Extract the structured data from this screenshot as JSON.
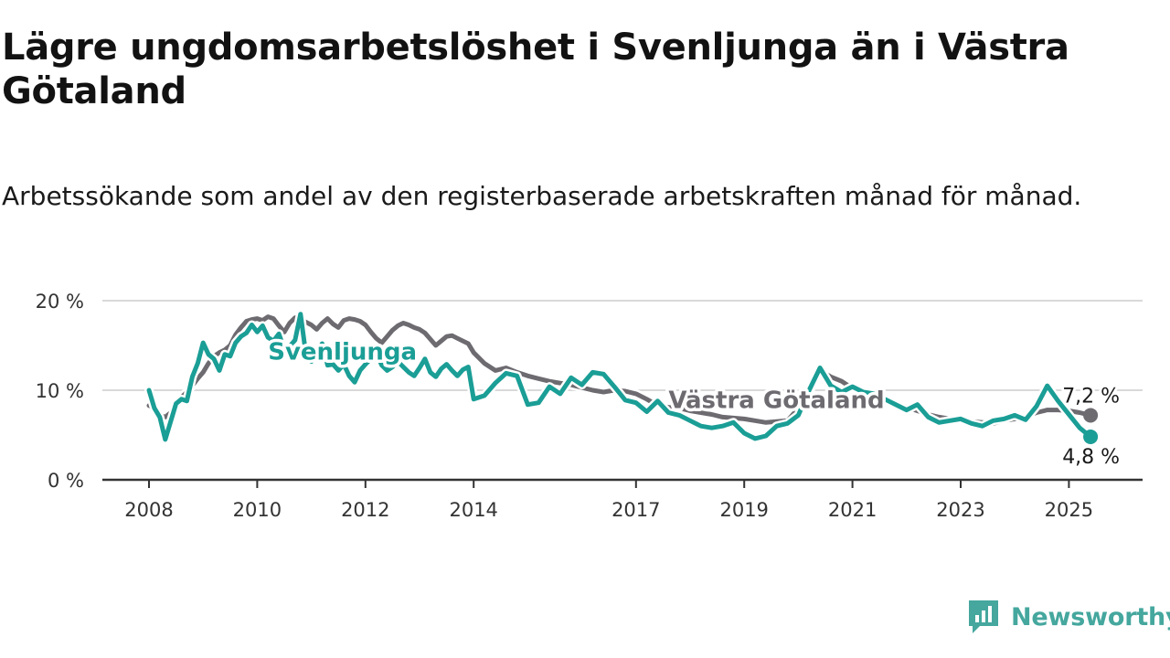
{
  "title": "Lägre ungdomsarbetslöshet i Svenljunga än i Västra Götaland",
  "subtitle": "Arbetssökande som andel av den registerbaserade arbetskraften månad för månad.",
  "brand": "Newsworthy",
  "colors": {
    "svenljunga": "#1a9e96",
    "vastra": "#6d6a70",
    "logo": "#45a79e",
    "grid": "#d9d9d9",
    "axis": "#333333"
  },
  "chart_data": {
    "type": "line",
    "title": "Lägre ungdomsarbetslöshet i Svenljunga än i Västra Götaland",
    "subtitle": "Arbetssökande som andel av den registerbaserade arbetskraften månad för månad.",
    "xlabel": "",
    "ylabel": "",
    "xlim": [
      2008.0,
      2027.0
    ],
    "ylim": [
      0,
      20
    ],
    "yticks": [
      0,
      10,
      20
    ],
    "ytick_labels": [
      "0 %",
      "10 %",
      "20 %"
    ],
    "xticks": [
      2008,
      2010,
      2012,
      2014,
      2017,
      2019,
      2021,
      2023,
      2025
    ],
    "xtick_labels": [
      "2008",
      "2010",
      "2012",
      "2014",
      "2017",
      "2019",
      "2021",
      "2023",
      "2025"
    ],
    "grid": true,
    "legend": "inline labels",
    "series": [
      {
        "name": "Västra Götaland",
        "color": "#6d6a70",
        "label_x": 2017.6,
        "label_y": 8.0,
        "end_label": "7,2 %",
        "x": [
          2008.0,
          2008.1,
          2008.2,
          2008.3,
          2008.4,
          2008.5,
          2008.6,
          2008.7,
          2008.8,
          2008.9,
          2009.0,
          2009.1,
          2009.2,
          2009.3,
          2009.4,
          2009.5,
          2009.6,
          2009.7,
          2009.8,
          2009.9,
          2010.0,
          2010.1,
          2010.2,
          2010.3,
          2010.4,
          2010.5,
          2010.6,
          2010.7,
          2010.8,
          2010.9,
          2011.0,
          2011.1,
          2011.2,
          2011.3,
          2011.4,
          2011.5,
          2011.6,
          2011.7,
          2011.8,
          2011.9,
          2012.0,
          2012.1,
          2012.2,
          2012.3,
          2012.4,
          2012.5,
          2012.6,
          2012.7,
          2012.8,
          2012.9,
          2013.0,
          2013.1,
          2013.2,
          2013.3,
          2013.4,
          2013.5,
          2013.6,
          2013.7,
          2013.8,
          2013.9,
          2014.0,
          2014.2,
          2014.4,
          2014.6,
          2014.8,
          2015.0,
          2015.2,
          2015.4,
          2015.6,
          2015.8,
          2016.0,
          2016.2,
          2016.4,
          2016.6,
          2016.8,
          2017.0,
          2017.2,
          2017.4,
          2017.6,
          2017.8,
          2018.0,
          2018.2,
          2018.4,
          2018.6,
          2018.8,
          2019.0,
          2019.2,
          2019.4,
          2019.6,
          2019.8,
          2020.0,
          2020.2,
          2020.4,
          2020.6,
          2020.8,
          2021.0,
          2021.2,
          2021.4,
          2021.6,
          2021.8,
          2022.0,
          2022.2,
          2022.4,
          2022.6,
          2022.8,
          2023.0,
          2023.2,
          2023.4,
          2023.6,
          2023.8,
          2024.0,
          2024.2,
          2024.4,
          2024.6,
          2024.8,
          2025.0,
          2025.2,
          2025.4
        ],
        "values": [
          8.3,
          8.0,
          7.2,
          7.0,
          7.5,
          8.3,
          9.2,
          9.8,
          10.5,
          11.3,
          12.0,
          13.0,
          13.8,
          14.2,
          14.5,
          15.0,
          16.2,
          17.0,
          17.7,
          17.9,
          18.0,
          17.8,
          18.2,
          18.0,
          17.2,
          16.5,
          17.5,
          18.1,
          17.9,
          17.6,
          17.3,
          16.8,
          17.5,
          18.0,
          17.4,
          17.0,
          17.8,
          18.0,
          17.9,
          17.7,
          17.3,
          16.5,
          15.8,
          15.3,
          16.0,
          16.7,
          17.2,
          17.5,
          17.3,
          17.0,
          16.8,
          16.4,
          15.7,
          15.0,
          15.5,
          16.0,
          16.1,
          15.8,
          15.5,
          15.2,
          14.2,
          13.0,
          12.2,
          12.5,
          12.0,
          11.6,
          11.3,
          11.0,
          10.8,
          10.6,
          10.3,
          10.0,
          9.8,
          10.0,
          9.9,
          9.6,
          9.0,
          8.3,
          8.1,
          8.0,
          7.7,
          7.5,
          7.3,
          7.0,
          6.9,
          6.8,
          6.6,
          6.4,
          6.5,
          6.6,
          8.0,
          9.8,
          12.2,
          11.5,
          11.0,
          10.2,
          9.6,
          9.2,
          8.9,
          8.5,
          8.1,
          7.7,
          7.3,
          7.0,
          6.8,
          6.7,
          6.5,
          6.4,
          6.3,
          6.6,
          6.8,
          7.0,
          7.5,
          7.8,
          7.8,
          7.7,
          7.5,
          7.2
        ]
      },
      {
        "name": "Svenljunga",
        "color": "#1a9e96",
        "label_x": 2010.2,
        "label_y": 13.4,
        "end_label": "4,8 %",
        "x": [
          2008.0,
          2008.1,
          2008.2,
          2008.3,
          2008.4,
          2008.5,
          2008.6,
          2008.7,
          2008.8,
          2008.9,
          2009.0,
          2009.1,
          2009.2,
          2009.3,
          2009.4,
          2009.5,
          2009.6,
          2009.7,
          2009.8,
          2009.9,
          2010.0,
          2010.1,
          2010.2,
          2010.3,
          2010.4,
          2010.5,
          2010.6,
          2010.7,
          2010.8,
          2010.9,
          2011.0,
          2011.1,
          2011.2,
          2011.3,
          2011.4,
          2011.5,
          2011.6,
          2011.7,
          2011.8,
          2011.9,
          2012.0,
          2012.1,
          2012.2,
          2012.3,
          2012.4,
          2012.5,
          2012.6,
          2012.7,
          2012.8,
          2012.9,
          2013.0,
          2013.1,
          2013.2,
          2013.3,
          2013.4,
          2013.5,
          2013.6,
          2013.7,
          2013.8,
          2013.9,
          2014.0,
          2014.2,
          2014.4,
          2014.6,
          2014.8,
          2015.0,
          2015.2,
          2015.4,
          2015.6,
          2015.8,
          2016.0,
          2016.2,
          2016.4,
          2016.6,
          2016.8,
          2017.0,
          2017.2,
          2017.4,
          2017.6,
          2017.8,
          2018.0,
          2018.2,
          2018.4,
          2018.6,
          2018.8,
          2019.0,
          2019.2,
          2019.4,
          2019.6,
          2019.8,
          2020.0,
          2020.2,
          2020.4,
          2020.6,
          2020.8,
          2021.0,
          2021.2,
          2021.4,
          2021.6,
          2021.8,
          2022.0,
          2022.2,
          2022.4,
          2022.6,
          2022.8,
          2023.0,
          2023.2,
          2023.4,
          2023.6,
          2023.8,
          2024.0,
          2024.2,
          2024.4,
          2024.6,
          2024.8,
          2025.0,
          2025.2,
          2025.4
        ],
        "values": [
          10.0,
          8.0,
          7.0,
          4.5,
          6.5,
          8.5,
          9.0,
          8.8,
          11.5,
          13.0,
          15.3,
          14.0,
          13.5,
          12.2,
          14.0,
          13.8,
          15.3,
          16.0,
          16.4,
          17.3,
          16.5,
          17.2,
          15.9,
          15.5,
          16.3,
          14.6,
          14.9,
          15.6,
          18.5,
          14.0,
          13.2,
          14.1,
          15.2,
          12.8,
          12.9,
          12.2,
          12.9,
          11.6,
          10.9,
          12.2,
          12.9,
          13.5,
          14.2,
          12.8,
          12.2,
          12.6,
          13.2,
          12.6,
          12.0,
          11.6,
          12.5,
          13.5,
          12.0,
          11.5,
          12.4,
          12.9,
          12.2,
          11.6,
          12.3,
          12.6,
          9.0,
          9.4,
          10.8,
          11.9,
          11.6,
          8.4,
          8.6,
          10.4,
          9.6,
          11.4,
          10.6,
          12.0,
          11.8,
          10.4,
          8.9,
          8.6,
          7.6,
          8.8,
          7.5,
          7.2,
          6.6,
          6.0,
          5.8,
          6.0,
          6.4,
          5.2,
          4.6,
          4.9,
          6.0,
          6.3,
          7.2,
          10.0,
          12.5,
          10.5,
          9.8,
          10.4,
          9.8,
          9.6,
          9.0,
          8.4,
          7.8,
          8.4,
          7.0,
          6.4,
          6.6,
          6.8,
          6.3,
          6.0,
          6.6,
          6.8,
          7.2,
          6.7,
          8.2,
          10.5,
          8.8,
          7.3,
          5.8,
          4.8
        ]
      }
    ]
  }
}
